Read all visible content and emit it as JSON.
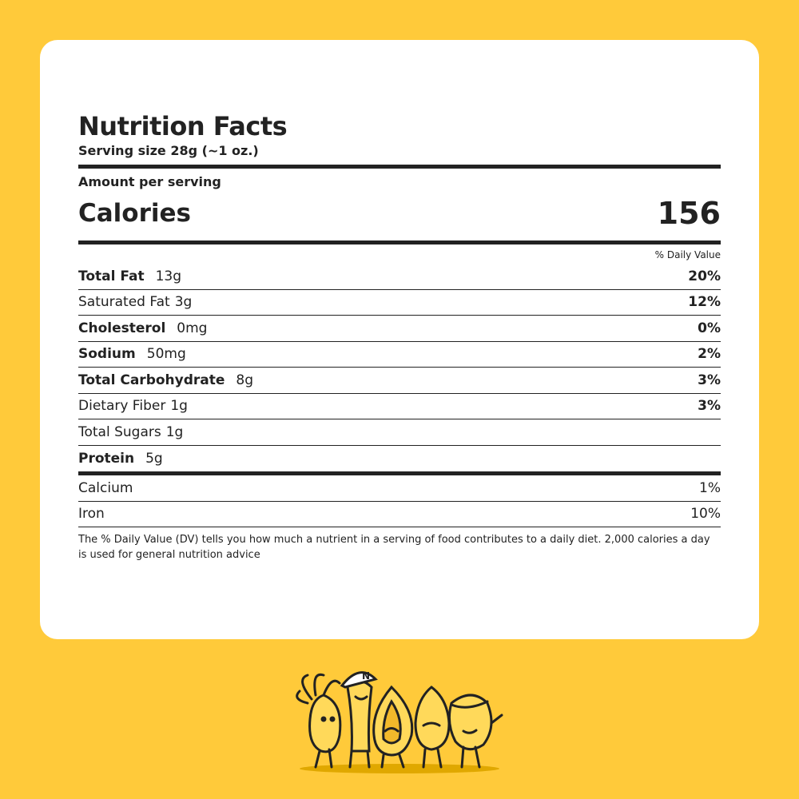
{
  "header": {
    "title": "Nutrition Facts",
    "serving_size": "Serving size 28g (~1 oz.)"
  },
  "amount_per_serving": "Amount per serving",
  "calories": {
    "label": "Calories",
    "value": "156"
  },
  "daily_value_header": "% Daily Value",
  "nutrients": [
    {
      "name": "Total Fat",
      "amount": "13g",
      "dv": "20%",
      "bold": true
    },
    {
      "name": "Saturated Fat",
      "amount": "3g",
      "dv": "12%",
      "bold": false
    },
    {
      "name": "Cholesterol",
      "amount": "0mg",
      "dv": "0%",
      "bold": true
    },
    {
      "name": "Sodium",
      "amount": "50mg",
      "dv": "2%",
      "bold": true
    },
    {
      "name": "Total Carbohydrate",
      "amount": "8g",
      "dv": "3%",
      "bold": true
    },
    {
      "name": "Dietary Fiber",
      "amount": "1g",
      "dv": "3%",
      "bold": false
    },
    {
      "name": "Total Sugars",
      "amount": "1g",
      "bold": false
    },
    {
      "name": "Protein",
      "amount": "5g",
      "bold": true
    }
  ],
  "minerals": [
    {
      "name": "Calcium",
      "dv": "1%"
    },
    {
      "name": "Iron",
      "dv": "10%"
    }
  ],
  "footnote": "The % Daily Value (DV) tells you how much a nutrient in a serving of food contributes to a daily diet. 2,000 calories a day is used for general nutrition advice"
}
